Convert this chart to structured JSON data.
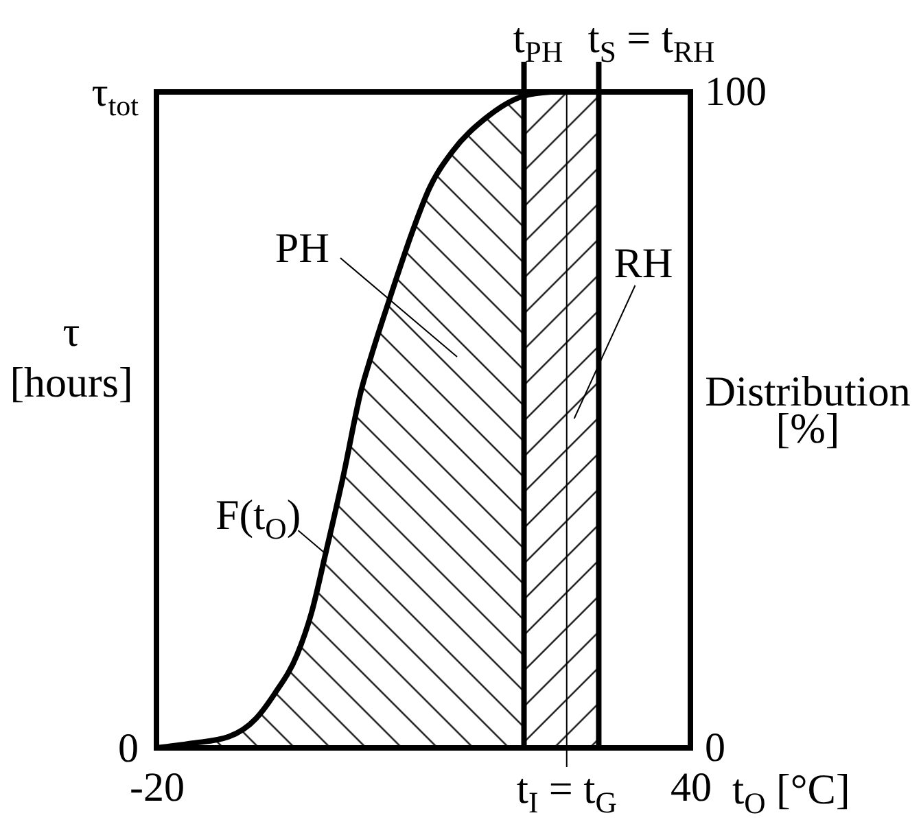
{
  "chart_data": {
    "type": "line",
    "xlabel": "t$_{O}$ [°C]",
    "ylabel": "Distribution [%]",
    "xlim": [
      -20,
      40
    ],
    "xticks": [
      -20,
      40
    ],
    "ylim": [
      0,
      100
    ],
    "yticks": [
      0,
      100
    ],
    "series": [
      {
        "color": "#000000",
        "x": [
          -20,
          -16,
          -11.9,
          -8.8,
          -6.7,
          -4.2,
          -2.6,
          -1,
          1,
          3,
          4.1,
          6.6,
          8.7,
          10.7,
          13.3,
          16.9,
          21.3,
          24.3
        ],
        "values": [
          0,
          0.7,
          1.7,
          4.5,
          8.3,
          14.2,
          20.5,
          29.6,
          41.5,
          54.5,
          59.6,
          70.1,
          78.5,
          85.4,
          91,
          95.9,
          99.4,
          100
        ]
      },
      {
        "type": "area",
        "color": "#000000",
        "x": [
          -20,
          -16,
          -11.9,
          -8.8,
          -6.7,
          -4.2,
          -2.6,
          -1,
          1,
          3,
          4.1,
          6.6,
          8.7,
          10.7,
          13.3,
          16.9,
          21.3
        ],
        "values": [
          0,
          0.7,
          1.7,
          4.5,
          8.3,
          14.2,
          20.5,
          29.6,
          41.5,
          54.5,
          59.6,
          70.1,
          78.5,
          85.4,
          91,
          95.9,
          99.4
        ]
      }
    ],
    "ref_lines": [
      {
        "axis": "x",
        "value": 21.3,
        "label": "t$_{PH}$",
        "color": "#000000"
      },
      {
        "axis": "x",
        "value": 29.7,
        "label": "t$_{S}$ = t$_{RH}$",
        "color": "#000000"
      },
      {
        "axis": "x",
        "value": 26.1,
        "label": "t$_{I}$ = t$_{G}$",
        "color": "#000000"
      }
    ],
    "bands": [
      {
        "axis": "x",
        "from": 21.3,
        "to": 29.7,
        "label": "RH",
        "color": "#000000"
      }
    ],
    "annotations": [
      {
        "text": "F(t$_{O}$)",
        "x": -1,
        "y": 29.6
      },
      "PH",
      "τ$_{tot}$",
      "0",
      "τ [hours]"
    ]
  }
}
